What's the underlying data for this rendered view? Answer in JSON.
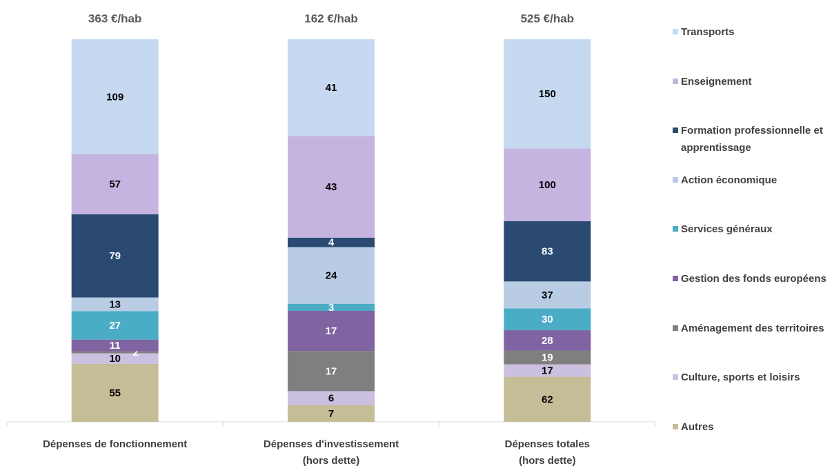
{
  "chart_data": {
    "type": "stacked_bar_100",
    "categories": [
      "Dépenses de fonctionnement",
      "Dépenses d'investissement\n(hors dette)",
      "Dépenses totales\n(hors dette)"
    ],
    "totals": [
      "363 €/hab",
      "162 €/hab",
      "525 €/hab"
    ],
    "series": [
      {
        "name": "Autres",
        "color": "#c4bd97",
        "label_color": "#000000",
        "values": [
          55,
          7,
          62
        ]
      },
      {
        "name": "Culture, sports et loisirs",
        "color": "#ccc0e0",
        "label_color": "#000000",
        "values": [
          10,
          6,
          17
        ]
      },
      {
        "name": "Aménagement des territoires",
        "color": "#7f7f7f",
        "label_color": "#ffffff",
        "values": [
          2,
          17,
          19
        ]
      },
      {
        "name": "Gestion des fonds européens",
        "color": "#8064a2",
        "label_color": "#ffffff",
        "values": [
          11,
          17,
          28
        ]
      },
      {
        "name": "Services généraux",
        "color": "#4bacc6",
        "label_color": "#ffffff",
        "values": [
          27,
          3,
          30
        ]
      },
      {
        "name": "Action économique",
        "color": "#b8cce4",
        "label_color": "#000000",
        "values": [
          13,
          24,
          37
        ]
      },
      {
        "name": "Formation professionnelle et apprentissage",
        "color": "#2a4a72",
        "label_color": "#ffffff",
        "values": [
          79,
          4,
          83
        ]
      },
      {
        "name": "Enseignement",
        "color": "#c5b3e0",
        "label_color": "#000000",
        "values": [
          57,
          43,
          100
        ]
      },
      {
        "name": "Transports",
        "color": "#c6d9f1",
        "label_color": "#000000",
        "values": [
          109,
          41,
          150
        ]
      }
    ]
  }
}
